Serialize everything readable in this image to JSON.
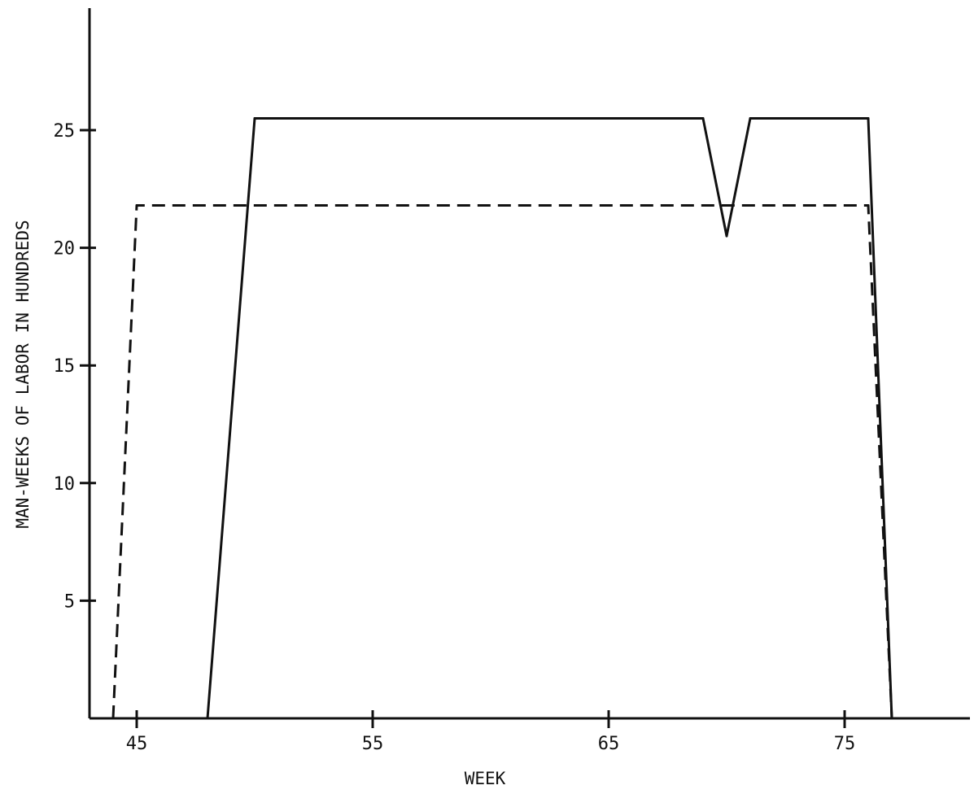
{
  "chart_data": {
    "type": "line",
    "xlabel": "WEEK",
    "ylabel": "MAN-WEEKS OF LABOR IN HUNDREDS",
    "xlim": [
      42,
      80
    ],
    "ylim": [
      0,
      30
    ],
    "x_ticks": [
      45,
      55,
      65,
      75
    ],
    "x_tick_labels": [
      "45",
      "55",
      "65",
      "75"
    ],
    "y_ticks": [
      5,
      10,
      15,
      20,
      25
    ],
    "y_tick_labels": [
      "5",
      "10",
      "15",
      "20",
      "25"
    ],
    "grid": false,
    "series": [
      {
        "style": "solid",
        "color": "#111111",
        "x": [
          48,
          50,
          69,
          70,
          71,
          76,
          77
        ],
        "y": [
          0,
          25.5,
          25.5,
          20.5,
          25.5,
          25.5,
          0
        ]
      },
      {
        "style": "dashed",
        "color": "#111111",
        "x": [
          44,
          45,
          76,
          77
        ],
        "y": [
          0,
          21.8,
          21.8,
          0
        ]
      }
    ]
  }
}
